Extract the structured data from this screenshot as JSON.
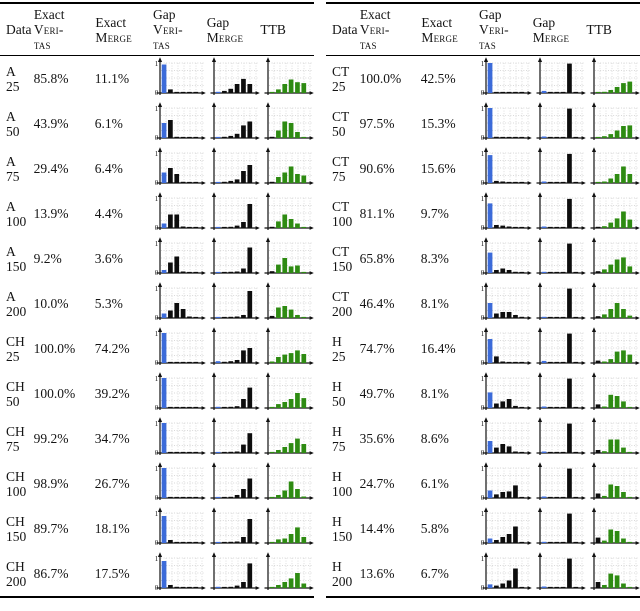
{
  "palette": {
    "b": "#3C6BD9",
    "k": "#0D0D0D",
    "g": "#2E8B12"
  },
  "axis": {
    "top": "1",
    "bottom": "0"
  },
  "header": {
    "data": "Data",
    "exact": "Exact",
    "gap": "Gap",
    "veritas1": "Veri-",
    "veritas2": "tas",
    "merge": "Merge",
    "ttb": "TTB"
  },
  "tables": [
    {
      "side": "left",
      "rows": [
        {
          "n": "A",
          "s": "25",
          "ev": "85.8%",
          "em": "11.1%",
          "gv": {
            "v": [
              0.95,
              0.12,
              0.03,
              0.02,
              0.02,
              0.02
            ],
            "c": "bkkkkk"
          },
          "gm": {
            "v": [
              0.04,
              0.07,
              0.14,
              0.3,
              0.47,
              0.3
            ],
            "c": "bkkkkk"
          },
          "ttb": {
            "v": [
              0.02,
              0.12,
              0.3,
              0.45,
              0.36,
              0.33
            ],
            "c": "gggggg"
          }
        },
        {
          "n": "A",
          "s": "50",
          "ev": "43.9%",
          "em": "6.1%",
          "gv": {
            "v": [
              0.5,
              0.6,
              0.04,
              0.02,
              0.02,
              0.02
            ],
            "c": "bkkkkk"
          },
          "gm": {
            "v": [
              0.03,
              0.04,
              0.07,
              0.14,
              0.42,
              0.55
            ],
            "c": "bkkkkk"
          },
          "ttb": {
            "v": [
              0.04,
              0.25,
              0.55,
              0.5,
              0.2,
              0.03
            ],
            "c": "kggggg"
          }
        },
        {
          "n": "A",
          "s": "75",
          "ev": "29.4%",
          "em": "6.4%",
          "gv": {
            "v": [
              0.35,
              0.5,
              0.3,
              0.04,
              0.02,
              0.02
            ],
            "c": "bkkkkk"
          },
          "gm": {
            "v": [
              0.03,
              0.04,
              0.07,
              0.12,
              0.4,
              0.6
            ],
            "c": "bkkkkk"
          },
          "ttb": {
            "v": [
              0.04,
              0.2,
              0.35,
              0.55,
              0.3,
              0.25
            ],
            "c": "kggggg"
          }
        },
        {
          "n": "A",
          "s": "100",
          "ev": "13.9%",
          "em": "4.4%",
          "gv": {
            "v": [
              0.15,
              0.45,
              0.45,
              0.05,
              0.02,
              0.02
            ],
            "c": "bkkkkk"
          },
          "gm": {
            "v": [
              0.02,
              0.03,
              0.04,
              0.08,
              0.2,
              0.8
            ],
            "c": "bkkkkk"
          },
          "ttb": {
            "v": [
              0.04,
              0.22,
              0.45,
              0.3,
              0.15,
              0.03
            ],
            "c": "kggggg"
          }
        },
        {
          "n": "A",
          "s": "150",
          "ev": "9.2%",
          "em": "3.6%",
          "gv": {
            "v": [
              0.1,
              0.35,
              0.55,
              0.05,
              0.02,
              0.02
            ],
            "c": "bkkkkk"
          },
          "gm": {
            "v": [
              0.02,
              0.03,
              0.04,
              0.05,
              0.15,
              0.85
            ],
            "c": "bkkkkk"
          },
          "ttb": {
            "v": [
              0.06,
              0.28,
              0.5,
              0.22,
              0.25,
              0.03
            ],
            "c": "kggggg"
          }
        },
        {
          "n": "A",
          "s": "200",
          "ev": "10.0%",
          "em": "5.3%",
          "gv": {
            "v": [
              0.15,
              0.25,
              0.5,
              0.3,
              0.05,
              0.02
            ],
            "c": "bkkkkk"
          },
          "gm": {
            "v": [
              0.02,
              0.03,
              0.04,
              0.05,
              0.1,
              0.9
            ],
            "c": "bkkkkk"
          },
          "ttb": {
            "v": [
              0.07,
              0.35,
              0.4,
              0.28,
              0.1,
              0.03
            ],
            "c": "kggggg"
          }
        },
        {
          "n": "CH",
          "s": "25",
          "ev": "100.0%",
          "em": "74.2%",
          "gv": {
            "v": [
              1.0,
              0.02,
              0.02,
              0.02,
              0.02,
              0.02
            ],
            "c": "bkkkkk"
          },
          "gm": {
            "v": [
              0.06,
              0.04,
              0.06,
              0.1,
              0.42,
              0.5
            ],
            "c": "bkkkkk"
          },
          "ttb": {
            "v": [
              0.05,
              0.2,
              0.28,
              0.33,
              0.42,
              0.3
            ],
            "c": "gggggg"
          }
        },
        {
          "n": "CH",
          "s": "50",
          "ev": "100.0%",
          "em": "39.2%",
          "gv": {
            "v": [
              1.0,
              0.02,
              0.02,
              0.02,
              0.02,
              0.02
            ],
            "c": "bkkkkk"
          },
          "gm": {
            "v": [
              0.04,
              0.03,
              0.04,
              0.06,
              0.3,
              0.68
            ],
            "c": "bkkkkk"
          },
          "ttb": {
            "v": [
              0.03,
              0.13,
              0.2,
              0.3,
              0.5,
              0.33
            ],
            "c": "gggggg"
          }
        },
        {
          "n": "CH",
          "s": "75",
          "ev": "99.2%",
          "em": "34.7%",
          "gv": {
            "v": [
              1.0,
              0.03,
              0.02,
              0.02,
              0.02,
              0.02
            ],
            "c": "bkkkkk"
          },
          "gm": {
            "v": [
              0.03,
              0.03,
              0.04,
              0.05,
              0.28,
              0.66
            ],
            "c": "bkkkkk"
          },
          "ttb": {
            "v": [
              0.02,
              0.1,
              0.2,
              0.33,
              0.48,
              0.3
            ],
            "c": "gggggg"
          }
        },
        {
          "n": "CH",
          "s": "100",
          "ev": "98.9%",
          "em": "26.7%",
          "gv": {
            "v": [
              1.0,
              0.03,
              0.02,
              0.02,
              0.02,
              0.02
            ],
            "c": "bkkkkk"
          },
          "gm": {
            "v": [
              0.03,
              0.03,
              0.04,
              0.1,
              0.3,
              0.65
            ],
            "c": "bkkkkk"
          },
          "ttb": {
            "v": [
              0.03,
              0.1,
              0.25,
              0.55,
              0.3,
              0.05
            ],
            "c": "gggggg"
          }
        },
        {
          "n": "CH",
          "s": "150",
          "ev": "89.7%",
          "em": "18.1%",
          "gv": {
            "v": [
              0.9,
              0.1,
              0.03,
              0.02,
              0.02,
              0.02
            ],
            "c": "bkkkkk"
          },
          "gm": {
            "v": [
              0.03,
              0.03,
              0.04,
              0.05,
              0.2,
              0.8
            ],
            "c": "bkkkkk"
          },
          "ttb": {
            "v": [
              0.03,
              0.12,
              0.15,
              0.3,
              0.52,
              0.2
            ],
            "c": "gggggg"
          }
        },
        {
          "n": "CH",
          "s": "200",
          "ev": "86.7%",
          "em": "17.5%",
          "gv": {
            "v": [
              0.9,
              0.1,
              0.04,
              0.03,
              0.02,
              0.02
            ],
            "c": "bkkkkk"
          },
          "gm": {
            "v": [
              0.04,
              0.03,
              0.04,
              0.08,
              0.2,
              0.82
            ],
            "c": "bkkkkk"
          },
          "ttb": {
            "v": [
              0.03,
              0.1,
              0.2,
              0.32,
              0.5,
              0.15
            ],
            "c": "gggggg"
          }
        }
      ]
    },
    {
      "side": "right",
      "rows": [
        {
          "n": "CT",
          "s": "25",
          "ev": "100.0%",
          "em": "42.5%",
          "gv": {
            "v": [
              1.0,
              0.02,
              0.02,
              0.02,
              0.02,
              0.02
            ],
            "c": "bkkkkk"
          },
          "gm": {
            "v": [
              0.07,
              0.02,
              0.02,
              0.02,
              0.98,
              0.02
            ],
            "c": "bkkkkk"
          },
          "ttb": {
            "v": [
              0.02,
              0.04,
              0.1,
              0.2,
              0.33,
              0.38
            ],
            "c": "gggggg"
          }
        },
        {
          "n": "CT",
          "s": "50",
          "ev": "97.5%",
          "em": "15.3%",
          "gv": {
            "v": [
              1.0,
              0.04,
              0.02,
              0.02,
              0.02,
              0.02
            ],
            "c": "bkkkkk"
          },
          "gm": {
            "v": [
              0.05,
              0.02,
              0.02,
              0.02,
              0.98,
              0.02
            ],
            "c": "bkkkkk"
          },
          "ttb": {
            "v": [
              0.02,
              0.06,
              0.13,
              0.25,
              0.4,
              0.42
            ],
            "c": "gggggg"
          }
        },
        {
          "n": "CT",
          "s": "75",
          "ev": "90.6%",
          "em": "15.6%",
          "gv": {
            "v": [
              0.93,
              0.07,
              0.05,
              0.03,
              0.02,
              0.02
            ],
            "c": "bkkkkk"
          },
          "gm": {
            "v": [
              0.05,
              0.02,
              0.02,
              0.02,
              0.97,
              0.02
            ],
            "c": "bkkkkk"
          },
          "ttb": {
            "v": [
              0.02,
              0.05,
              0.15,
              0.3,
              0.55,
              0.3
            ],
            "c": "gggggg"
          }
        },
        {
          "n": "CT",
          "s": "100",
          "ev": "81.1%",
          "em": "9.7%",
          "gv": {
            "v": [
              0.82,
              0.1,
              0.08,
              0.05,
              0.03,
              0.02
            ],
            "c": "bkkkkk"
          },
          "gm": {
            "v": [
              0.05,
              0.02,
              0.02,
              0.02,
              0.97,
              0.02
            ],
            "c": "bkkkkk"
          },
          "ttb": {
            "v": [
              0.04,
              0.06,
              0.18,
              0.32,
              0.55,
              0.28
            ],
            "c": "kggggg"
          }
        },
        {
          "n": "CT",
          "s": "150",
          "ev": "65.8%",
          "em": "8.3%",
          "gv": {
            "v": [
              0.68,
              0.1,
              0.15,
              0.1,
              0.04,
              0.02
            ],
            "c": "bkkkkk"
          },
          "gm": {
            "v": [
              0.04,
              0.02,
              0.02,
              0.02,
              0.98,
              0.02
            ],
            "c": "bkkkkk"
          },
          "ttb": {
            "v": [
              0.06,
              0.12,
              0.28,
              0.45,
              0.52,
              0.22
            ],
            "c": "kggggg"
          }
        },
        {
          "n": "CT",
          "s": "200",
          "ev": "46.4%",
          "em": "8.1%",
          "gv": {
            "v": [
              0.5,
              0.15,
              0.2,
              0.2,
              0.1,
              0.04
            ],
            "c": "bkkkkk"
          },
          "gm": {
            "v": [
              0.04,
              0.02,
              0.02,
              0.02,
              0.98,
              0.02
            ],
            "c": "bkkkkk"
          },
          "ttb": {
            "v": [
              0.06,
              0.12,
              0.3,
              0.5,
              0.3,
              0.08
            ],
            "c": "kggggg"
          }
        },
        {
          "n": "H",
          "s": "25",
          "ev": "74.7%",
          "em": "16.4%",
          "gv": {
            "v": [
              0.8,
              0.22,
              0.05,
              0.02,
              0.02,
              0.02
            ],
            "c": "bkkkkk"
          },
          "gm": {
            "v": [
              0.07,
              0.02,
              0.02,
              0.02,
              0.98,
              0.02
            ],
            "c": "bkkkkk"
          },
          "ttb": {
            "v": [
              0.08,
              0.05,
              0.13,
              0.38,
              0.42,
              0.28
            ],
            "c": "kggggg"
          }
        },
        {
          "n": "H",
          "s": "50",
          "ev": "49.7%",
          "em": "8.1%",
          "gv": {
            "v": [
              0.52,
              0.15,
              0.22,
              0.3,
              0.07,
              0.02
            ],
            "c": "bkkkkk"
          },
          "gm": {
            "v": [
              0.05,
              0.02,
              0.02,
              0.02,
              0.98,
              0.02
            ],
            "c": "bkkkkk"
          },
          "ttb": {
            "v": [
              0.12,
              0.05,
              0.44,
              0.4,
              0.22,
              0.03
            ],
            "c": "kggggg"
          }
        },
        {
          "n": "H",
          "s": "75",
          "ev": "35.6%",
          "em": "8.6%",
          "gv": {
            "v": [
              0.4,
              0.18,
              0.3,
              0.22,
              0.05,
              0.02
            ],
            "c": "bkkkkk"
          },
          "gm": {
            "v": [
              0.05,
              0.02,
              0.02,
              0.02,
              0.98,
              0.02
            ],
            "c": "bkkkkk"
          },
          "ttb": {
            "v": [
              0.1,
              0.06,
              0.45,
              0.45,
              0.18,
              0.03
            ],
            "c": "kggggg"
          }
        },
        {
          "n": "H",
          "s": "100",
          "ev": "24.7%",
          "em": "6.1%",
          "gv": {
            "v": [
              0.25,
              0.12,
              0.2,
              0.22,
              0.42,
              0.02
            ],
            "c": "bkkkkk"
          },
          "gm": {
            "v": [
              0.05,
              0.02,
              0.02,
              0.02,
              0.98,
              0.02
            ],
            "c": "bkkkkk"
          },
          "ttb": {
            "v": [
              0.15,
              0.07,
              0.45,
              0.4,
              0.2,
              0.03
            ],
            "c": "kggggg"
          }
        },
        {
          "n": "H",
          "s": "150",
          "ev": "14.4%",
          "em": "5.8%",
          "gv": {
            "v": [
              0.15,
              0.1,
              0.2,
              0.3,
              0.55,
              0.02
            ],
            "c": "bkkkkk"
          },
          "gm": {
            "v": [
              0.04,
              0.02,
              0.02,
              0.02,
              0.98,
              0.02
            ],
            "c": "bkkkkk"
          },
          "ttb": {
            "v": [
              0.18,
              0.08,
              0.45,
              0.4,
              0.15,
              0.03
            ],
            "c": "kggggg"
          }
        },
        {
          "n": "H",
          "s": "200",
          "ev": "13.6%",
          "em": "6.7%",
          "gv": {
            "v": [
              0.12,
              0.08,
              0.15,
              0.25,
              0.65,
              0.02
            ],
            "c": "bkkkkk"
          },
          "gm": {
            "v": [
              0.05,
              0.02,
              0.02,
              0.02,
              0.98,
              0.02
            ],
            "c": "bkkkkk"
          },
          "ttb": {
            "v": [
              0.2,
              0.1,
              0.48,
              0.42,
              0.15,
              0.03
            ],
            "c": "kggggg"
          }
        }
      ]
    }
  ]
}
